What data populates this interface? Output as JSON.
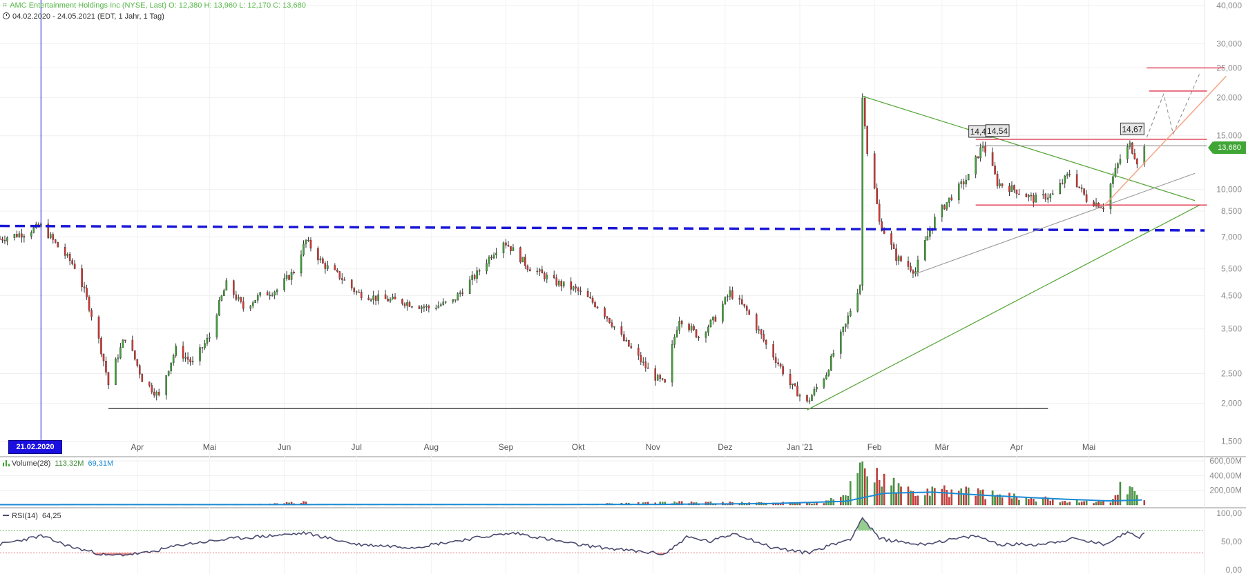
{
  "header": {
    "title": "AMC Entertainment Holdings Inc (NYSE, Last)  O: 12,380  H: 13,960  L: 12,170  C: 13,680",
    "range": "04.02.2020 - 24.05.2021   (EDT, 1 Jahr, 1 Tag)"
  },
  "colors": {
    "up": "#3fa535",
    "down": "#e0322e",
    "resistance": "#1a17d6",
    "wedge": "#5aa83c",
    "channel": "#e0324a",
    "trend_peach": "#f4a88a",
    "grey_trend": "#9a9a9a",
    "volume_avg": "#1a8ad4",
    "rsi_line": "#4a4a70"
  },
  "price_tag": "13,680",
  "crosshair_date": "21.02.2020",
  "chart_data": {
    "type": "candlestick",
    "y_scale": "log",
    "ylim": [
      1.35,
      40
    ],
    "y_ticks": [
      {
        "value": 1.5,
        "label": "1,500"
      },
      {
        "value": 2.0,
        "label": "2,000"
      },
      {
        "value": 2.5,
        "label": "2,500"
      },
      {
        "value": 3.5,
        "label": "3,500"
      },
      {
        "value": 4.5,
        "label": "4,500"
      },
      {
        "value": 5.5,
        "label": "5,500"
      },
      {
        "value": 7.0,
        "label": "7,000"
      },
      {
        "value": 8.5,
        "label": "8,500"
      },
      {
        "value": 10,
        "label": "10,000"
      },
      {
        "value": 15,
        "label": "15,000"
      },
      {
        "value": 20,
        "label": "20,000"
      },
      {
        "value": 25,
        "label": "25,000"
      },
      {
        "value": 30,
        "label": "30,000"
      },
      {
        "value": 40,
        "label": "40,000"
      }
    ],
    "x_ticks": [
      {
        "date": "2020-04-01",
        "label": "Apr"
      },
      {
        "date": "2020-05-01",
        "label": "Mai"
      },
      {
        "date": "2020-06-01",
        "label": "Jun"
      },
      {
        "date": "2020-07-01",
        "label": "Jul"
      },
      {
        "date": "2020-08-01",
        "label": "Aug"
      },
      {
        "date": "2020-09-01",
        "label": "Sep"
      },
      {
        "date": "2020-10-01",
        "label": "Okt"
      },
      {
        "date": "2020-11-01",
        "label": "Nov"
      },
      {
        "date": "2020-12-01",
        "label": "Dez"
      },
      {
        "date": "2021-01-01",
        "label": "Jan '21"
      },
      {
        "date": "2021-02-01",
        "label": "Feb"
      },
      {
        "date": "2021-03-01",
        "label": "Mär"
      },
      {
        "date": "2021-04-01",
        "label": "Apr"
      },
      {
        "date": "2021-05-01",
        "label": "Mai"
      }
    ],
    "xlim": [
      "2020-02-04",
      "2021-06-18"
    ],
    "close_path": [
      [
        "2020-02-04",
        6.9
      ],
      [
        "2020-02-14",
        7.2
      ],
      [
        "2020-02-21",
        7.6
      ],
      [
        "2020-02-28",
        6.5
      ],
      [
        "2020-03-06",
        5.6
      ],
      [
        "2020-03-13",
        3.9
      ],
      [
        "2020-03-20",
        2.3
      ],
      [
        "2020-03-27",
        3.3
      ],
      [
        "2020-04-03",
        2.4
      ],
      [
        "2020-04-10",
        2.1
      ],
      [
        "2020-04-17",
        3.0
      ],
      [
        "2020-04-24",
        2.7
      ],
      [
        "2020-05-01",
        3.3
      ],
      [
        "2020-05-08",
        4.9
      ],
      [
        "2020-05-15",
        4.1
      ],
      [
        "2020-05-22",
        4.5
      ],
      [
        "2020-05-29",
        4.7
      ],
      [
        "2020-06-05",
        5.4
      ],
      [
        "2020-06-10",
        6.8
      ],
      [
        "2020-06-17",
        5.7
      ],
      [
        "2020-06-24",
        5.2
      ],
      [
        "2020-07-01",
        4.6
      ],
      [
        "2020-07-10",
        4.4
      ],
      [
        "2020-07-20",
        4.3
      ],
      [
        "2020-07-31",
        4.1
      ],
      [
        "2020-08-10",
        4.3
      ],
      [
        "2020-08-20",
        5.3
      ],
      [
        "2020-08-31",
        6.8
      ],
      [
        "2020-09-10",
        5.6
      ],
      [
        "2020-09-21",
        5.0
      ],
      [
        "2020-09-30",
        4.7
      ],
      [
        "2020-10-10",
        4.1
      ],
      [
        "2020-10-20",
        3.2
      ],
      [
        "2020-10-31",
        2.5
      ],
      [
        "2020-11-06",
        2.3
      ],
      [
        "2020-11-12",
        3.8
      ],
      [
        "2020-11-20",
        3.3
      ],
      [
        "2020-11-27",
        3.8
      ],
      [
        "2020-12-03",
        4.6
      ],
      [
        "2020-12-10",
        4.0
      ],
      [
        "2020-12-18",
        3.1
      ],
      [
        "2020-12-28",
        2.3
      ],
      [
        "2021-01-04",
        2.0
      ],
      [
        "2021-01-12",
        2.5
      ],
      [
        "2021-01-20",
        3.6
      ],
      [
        "2021-01-26",
        4.9
      ],
      [
        "2021-01-27",
        19.9
      ],
      [
        "2021-01-29",
        13.3
      ],
      [
        "2021-02-03",
        7.8
      ],
      [
        "2021-02-10",
        6.0
      ],
      [
        "2021-02-18",
        5.4
      ],
      [
        "2021-02-26",
        8.0
      ],
      [
        "2021-03-05",
        9.5
      ],
      [
        "2021-03-12",
        11.0
      ],
      [
        "2021-03-18",
        14.0
      ],
      [
        "2021-03-24",
        10.5
      ],
      [
        "2021-03-31",
        10.0
      ],
      [
        "2021-04-08",
        9.3
      ],
      [
        "2021-04-16",
        9.6
      ],
      [
        "2021-04-23",
        11.3
      ],
      [
        "2021-04-30",
        9.3
      ],
      [
        "2021-05-07",
        8.8
      ],
      [
        "2021-05-14",
        12.6
      ],
      [
        "2021-05-18",
        14.0
      ],
      [
        "2021-05-21",
        12.4
      ],
      [
        "2021-05-24",
        13.68
      ]
    ],
    "volume": {
      "label": "Volume(28)",
      "value_a": "113,32M",
      "value_b": "69,31M",
      "ylim": [
        0,
        600
      ],
      "y_ticks": [
        {
          "value": 200,
          "label": "200,00M"
        },
        {
          "value": 400,
          "label": "400,00M"
        },
        {
          "value": 600,
          "label": "600,00M"
        }
      ],
      "profile": [
        [
          "2020-02-04",
          5
        ],
        [
          "2020-05-20",
          10
        ],
        [
          "2020-06-10",
          35
        ],
        [
          "2020-06-11",
          8
        ],
        [
          "2020-10-01",
          8
        ],
        [
          "2020-11-10",
          35
        ],
        [
          "2020-12-05",
          30
        ],
        [
          "2021-01-10",
          25
        ],
        [
          "2021-01-20",
          120
        ],
        [
          "2021-01-27",
          600
        ],
        [
          "2021-02-05",
          300
        ],
        [
          "2021-02-18",
          150
        ],
        [
          "2021-03-10",
          200
        ],
        [
          "2021-03-25",
          120
        ],
        [
          "2021-04-20",
          60
        ],
        [
          "2021-05-10",
          40
        ],
        [
          "2021-05-14",
          280
        ],
        [
          "2021-05-24",
          90
        ]
      ],
      "avg_profile": [
        [
          "2020-02-04",
          5
        ],
        [
          "2020-11-01",
          8
        ],
        [
          "2020-12-20",
          20
        ],
        [
          "2021-01-20",
          50
        ],
        [
          "2021-02-05",
          160
        ],
        [
          "2021-02-25",
          175
        ],
        [
          "2021-03-20",
          130
        ],
        [
          "2021-04-20",
          80
        ],
        [
          "2021-05-10",
          55
        ],
        [
          "2021-05-24",
          70
        ]
      ]
    },
    "rsi": {
      "label": "RSI(14)",
      "value": "64,25",
      "ylim": [
        0,
        100
      ],
      "levels": [
        70,
        30
      ],
      "y_ticks": [
        {
          "value": 0,
          "label": "0,00"
        },
        {
          "value": 50,
          "label": "50,00"
        },
        {
          "value": 100,
          "label": "100,00"
        }
      ],
      "values": [
        [
          "2020-02-04",
          45
        ],
        [
          "2020-02-21",
          60
        ],
        [
          "2020-03-05",
          40
        ],
        [
          "2020-03-20",
          25
        ],
        [
          "2020-04-05",
          30
        ],
        [
          "2020-04-20",
          45
        ],
        [
          "2020-05-10",
          55
        ],
        [
          "2020-06-10",
          65
        ],
        [
          "2020-07-01",
          45
        ],
        [
          "2020-07-25",
          40
        ],
        [
          "2020-08-25",
          60
        ],
        [
          "2020-09-05",
          65
        ],
        [
          "2020-09-30",
          45
        ],
        [
          "2020-10-20",
          35
        ],
        [
          "2020-11-06",
          28
        ],
        [
          "2020-11-15",
          58
        ],
        [
          "2020-11-25",
          50
        ],
        [
          "2020-12-05",
          65
        ],
        [
          "2020-12-20",
          40
        ],
        [
          "2021-01-04",
          30
        ],
        [
          "2021-01-22",
          55
        ],
        [
          "2021-01-27",
          92
        ],
        [
          "2021-02-03",
          55
        ],
        [
          "2021-02-20",
          45
        ],
        [
          "2021-03-15",
          60
        ],
        [
          "2021-03-25",
          45
        ],
        [
          "2021-04-10",
          45
        ],
        [
          "2021-04-25",
          55
        ],
        [
          "2021-05-07",
          45
        ],
        [
          "2021-05-18",
          68
        ],
        [
          "2021-05-22",
          58
        ],
        [
          "2021-05-24",
          64.25
        ]
      ]
    },
    "annotations": [
      {
        "label": "14,49"
      },
      {
        "label": "14,54"
      },
      {
        "label": "14,67"
      }
    ]
  }
}
